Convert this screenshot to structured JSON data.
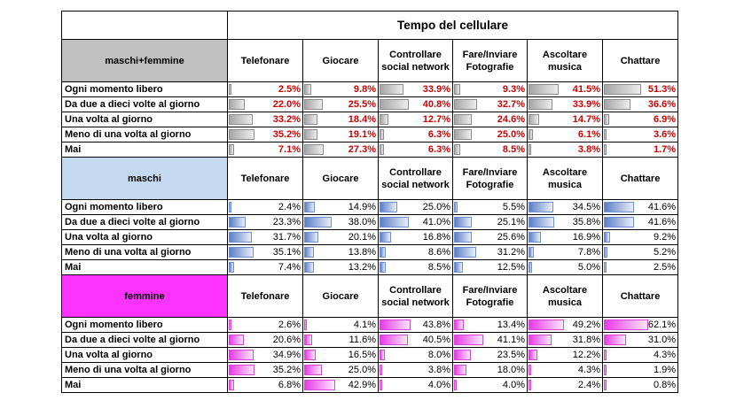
{
  "title": "Tempo del cellulare",
  "columns": [
    "Telefonare",
    "Giocare",
    "Controllare social network",
    "Fare/Inviare Fotografie",
    "Ascoltare musica",
    "Chattare"
  ],
  "row_labels": [
    "Ogni momento libero",
    "Da due a dieci volte al giorno",
    "Una volta al giorno",
    "Meno di una volta al giorno",
    "Mai"
  ],
  "colors": {
    "maschi_femmine": "#c0c0c0",
    "maschi": "#c5d9f1",
    "femmine": "#ff33ff",
    "red_text": "#d00000"
  },
  "sections": [
    {
      "label": "maschi+femmine",
      "style": "g",
      "text": "red",
      "values": [
        [
          "2.5%",
          "9.8%",
          "33.9%",
          "9.3%",
          "41.5%",
          "51.3%"
        ],
        [
          "22.0%",
          "25.5%",
          "40.8%",
          "32.7%",
          "33.9%",
          "36.6%"
        ],
        [
          "33.2%",
          "18.4%",
          "12.7%",
          "24.6%",
          "14.7%",
          "6.9%"
        ],
        [
          "35.2%",
          "19.1%",
          "6.3%",
          "25.0%",
          "6.1%",
          "3.6%"
        ],
        [
          "7.1%",
          "27.3%",
          "6.3%",
          "8.5%",
          "3.8%",
          "1.7%"
        ]
      ]
    },
    {
      "label": "maschi",
      "style": "b",
      "text": "plain",
      "values": [
        [
          "2.4%",
          "14.9%",
          "25.0%",
          "5.5%",
          "34.5%",
          "41.6%"
        ],
        [
          "23.3%",
          "38.0%",
          "41.0%",
          "25.1%",
          "35.8%",
          "41.6%"
        ],
        [
          "31.7%",
          "20.1%",
          "16.8%",
          "25.6%",
          "16.9%",
          "9.2%"
        ],
        [
          "35.1%",
          "13.8%",
          "8.6%",
          "31.2%",
          "7.8%",
          "5.2%"
        ],
        [
          "7.4%",
          "13.2%",
          "8.5%",
          "12.5%",
          "5.0%",
          "2.5%"
        ]
      ]
    },
    {
      "label": "femmine",
      "style": "m",
      "text": "plain",
      "values": [
        [
          "2.6%",
          "4.1%",
          "43.8%",
          "13.4%",
          "49.2%",
          "62.1%"
        ],
        [
          "20.6%",
          "11.6%",
          "40.5%",
          "41.1%",
          "31.8%",
          "31.0%"
        ],
        [
          "34.9%",
          "16.5%",
          "8.0%",
          "23.5%",
          "12.2%",
          "4.3%"
        ],
        [
          "35.2%",
          "25.0%",
          "3.8%",
          "18.0%",
          "4.3%",
          "1.9%"
        ],
        [
          "6.8%",
          "42.9%",
          "4.0%",
          "4.0%",
          "2.4%",
          "0.8%"
        ]
      ]
    }
  ]
}
